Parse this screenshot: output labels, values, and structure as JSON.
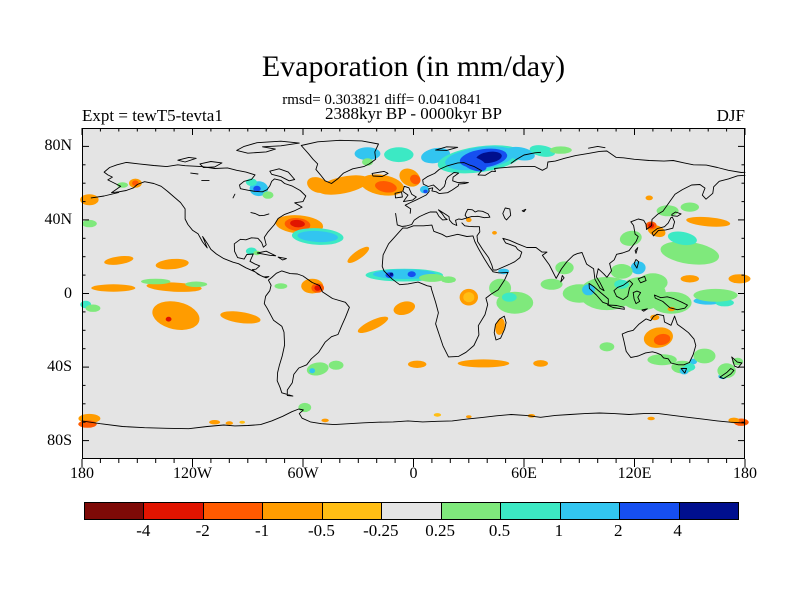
{
  "header": {
    "title": "Evaporation (in mm/day)",
    "stats_line": "rmsd= 0.303821 diff= 0.0410841",
    "period_line": "2388kyr BP - 0000kyr BP",
    "experiment_label": "Expt = tewT5-tevta1",
    "season_label": "DJF"
  },
  "chart_data": {
    "type": "heatmap",
    "subtype": "filled-contour anomaly map on equirectangular world projection",
    "title": "Evaporation (in mm/day)",
    "units": "mm/day",
    "stats": {
      "rmsd": 0.303821,
      "diff": 0.0410841
    },
    "period": "2388kyr BP - 0000kyr BP",
    "experiment": "tewT5-tevta1",
    "season": "DJF",
    "map_background": "#e4e4e4",
    "frame_color": "#000000",
    "lon_axis": {
      "range": [
        -180,
        180
      ],
      "minor_tick_deg": 10,
      "ticks": [
        {
          "label": "180",
          "lon": -180
        },
        {
          "label": "120W",
          "lon": -120
        },
        {
          "label": "60W",
          "lon": -60
        },
        {
          "label": "0",
          "lon": 0
        },
        {
          "label": "60E",
          "lon": 60
        },
        {
          "label": "120E",
          "lon": 120
        },
        {
          "label": "180",
          "lon": 180
        }
      ]
    },
    "lat_axis": {
      "range": [
        -90,
        90
      ],
      "minor_tick_deg": 10,
      "ticks": [
        {
          "label": "80N",
          "lat": 80
        },
        {
          "label": "40N",
          "lat": 40
        },
        {
          "label": "0",
          "lat": 0
        },
        {
          "label": "40S",
          "lat": -40
        },
        {
          "label": "80S",
          "lat": -80
        }
      ]
    },
    "colorbar": {
      "levels": [
        -4,
        -2,
        -1,
        -0.5,
        -0.25,
        0.25,
        0.5,
        1,
        2,
        4
      ],
      "colors": [
        "#7e0a07",
        "#e11400",
        "#ff5a00",
        "#ff9c00",
        "#ffbe14",
        "#e4e4e4",
        "#7fe97c",
        "#3ce9c4",
        "#32c5f0",
        "#164ff0",
        "#000f8e"
      ]
    },
    "anomaly_region_format": "[lon_center, lat_center, rx_deg, ry_deg, rotation_deg, colorbar_color_index]",
    "anomaly_regions": [
      [
        -38,
        59,
        14,
        4.5,
        -12,
        3
      ],
      [
        -52,
        59,
        6,
        4,
        20,
        3
      ],
      [
        -17,
        59,
        12,
        5.5,
        10,
        3
      ],
      [
        -15,
        58,
        6,
        3,
        10,
        2
      ],
      [
        -2,
        63,
        6,
        4.5,
        30,
        3
      ],
      [
        1,
        62,
        3,
        2.5,
        30,
        2
      ],
      [
        -25,
        76,
        7,
        3.5,
        0,
        8
      ],
      [
        -8,
        75.5,
        8,
        4,
        0,
        7
      ],
      [
        12,
        75,
        8,
        4,
        -10,
        8
      ],
      [
        36,
        73,
        23,
        7,
        -8,
        7
      ],
      [
        36,
        73.5,
        19,
        6,
        -8,
        8
      ],
      [
        38,
        73.5,
        13,
        5,
        -8,
        9
      ],
      [
        41,
        74,
        7,
        3,
        -8,
        10
      ],
      [
        33,
        70.5,
        7,
        3.5,
        20,
        9
      ],
      [
        58,
        76,
        8,
        3.5,
        10,
        8
      ],
      [
        70,
        77.5,
        7,
        3,
        10,
        7
      ],
      [
        80,
        78,
        6,
        2,
        0,
        6
      ],
      [
        6,
        56.5,
        2.5,
        2,
        0,
        8
      ],
      [
        6.5,
        55.5,
        1.2,
        1,
        0,
        9
      ],
      [
        -25,
        71.5,
        3,
        2,
        0,
        6
      ],
      [
        -84,
        57,
        5,
        4,
        0,
        8
      ],
      [
        -85,
        57,
        2,
        1.6,
        0,
        9
      ],
      [
        -88,
        60.5,
        3,
        2,
        0,
        7
      ],
      [
        -79,
        53.5,
        3,
        2,
        0,
        6
      ],
      [
        -62,
        37.5,
        13,
        5,
        5,
        3
      ],
      [
        -63,
        37.5,
        7,
        3.5,
        5,
        2
      ],
      [
        -63,
        38,
        4,
        2,
        5,
        1
      ],
      [
        -52,
        31,
        14,
        4.5,
        3,
        7
      ],
      [
        -52,
        31,
        11,
        3,
        3,
        8
      ],
      [
        -151,
        60,
        3.5,
        2.5,
        0,
        3
      ],
      [
        -151,
        60,
        1.8,
        1.5,
        0,
        2
      ],
      [
        -158,
        59,
        3,
        1.5,
        0,
        6
      ],
      [
        -176,
        51,
        5,
        3,
        0,
        3
      ],
      [
        -88,
        23,
        3,
        2,
        0,
        7
      ],
      [
        -85,
        22,
        2,
        1.2,
        0,
        6
      ],
      [
        -160,
        18,
        8,
        2.2,
        -8,
        3
      ],
      [
        -131,
        16,
        9,
        2.8,
        -5,
        3
      ],
      [
        -176,
        38,
        4,
        2,
        0,
        6
      ],
      [
        -178,
        -6,
        3,
        2,
        0,
        7
      ],
      [
        -174,
        -8,
        4,
        2,
        0,
        6
      ],
      [
        -163,
        3,
        12,
        2,
        0,
        3
      ],
      [
        -130,
        3.5,
        15,
        2.5,
        3,
        3
      ],
      [
        -140,
        6.5,
        8,
        1.5,
        0,
        6
      ],
      [
        -118,
        5,
        6,
        1.5,
        0,
        6
      ],
      [
        -129,
        -12,
        13,
        7.5,
        12,
        3
      ],
      [
        -133,
        -14,
        1.6,
        1.3,
        0,
        1
      ],
      [
        -94,
        -13,
        11,
        3,
        8,
        3
      ],
      [
        -72,
        4,
        3.5,
        1.5,
        0,
        6
      ],
      [
        -55,
        4,
        6,
        4,
        0,
        3
      ],
      [
        -52,
        3,
        3.4,
        2.6,
        0,
        2
      ],
      [
        -52,
        3,
        1.8,
        1.5,
        0,
        1
      ],
      [
        -52,
        -41,
        6,
        3.5,
        -10,
        6
      ],
      [
        -55,
        -42,
        1.6,
        1.4,
        0,
        8
      ],
      [
        -42,
        -39,
        4,
        2.5,
        0,
        6
      ],
      [
        -59,
        -62,
        3.5,
        2.5,
        0,
        6
      ],
      [
        -30,
        21,
        7,
        2.2,
        -35,
        3
      ],
      [
        -22,
        -17,
        9,
        2.5,
        -25,
        3
      ],
      [
        -5,
        -8,
        6,
        3.5,
        -15,
        3
      ],
      [
        -5,
        10,
        21,
        3.5,
        0,
        7
      ],
      [
        -5,
        10.5,
        17,
        2.6,
        0,
        8
      ],
      [
        -13,
        10,
        2.2,
        1.6,
        0,
        9
      ],
      [
        -1,
        10.5,
        2.2,
        1.6,
        0,
        9
      ],
      [
        -12,
        10.5,
        1,
        0.9,
        0,
        10
      ],
      [
        10,
        8.5,
        7,
        2.2,
        0,
        6
      ],
      [
        19,
        7.5,
        4,
        1.8,
        0,
        6
      ],
      [
        30,
        -2,
        5,
        4.5,
        0,
        3
      ],
      [
        30,
        -2,
        3,
        2.8,
        0,
        4
      ],
      [
        47,
        -18,
        2.5,
        4.5,
        10,
        3
      ],
      [
        2,
        -38.5,
        5,
        2,
        0,
        3
      ],
      [
        38,
        -38,
        14,
        2.2,
        0,
        3
      ],
      [
        69,
        -38,
        4,
        1.8,
        0,
        3
      ],
      [
        47,
        3,
        6,
        5,
        0,
        6
      ],
      [
        55,
        -5,
        10,
        6,
        0,
        6
      ],
      [
        52,
        -2,
        4,
        2.5,
        0,
        7
      ],
      [
        49,
        12,
        3,
        1.5,
        0,
        8
      ],
      [
        75,
        5,
        6,
        3,
        0,
        6
      ],
      [
        82,
        14,
        5,
        3.5,
        0,
        6
      ],
      [
        90,
        0,
        9,
        5,
        0,
        6
      ],
      [
        105,
        0,
        15,
        9,
        0,
        6
      ],
      [
        124,
        0,
        13,
        9,
        0,
        6
      ],
      [
        140,
        -5,
        11,
        6,
        0,
        6
      ],
      [
        95,
        2,
        3.5,
        3,
        0,
        8
      ],
      [
        122,
        14,
        4,
        3.5,
        0,
        8
      ],
      [
        113,
        5,
        4,
        2.5,
        0,
        7
      ],
      [
        160,
        -4,
        8,
        2,
        0,
        8
      ],
      [
        169,
        -5,
        5,
        2,
        0,
        7
      ],
      [
        164,
        -1,
        12,
        3.5,
        0,
        6
      ],
      [
        168,
        -45,
        2.5,
        1.5,
        0,
        8
      ],
      [
        113,
        12,
        6,
        4,
        0,
        6
      ],
      [
        130,
        6,
        8,
        5,
        0,
        6
      ],
      [
        105,
        -29,
        4,
        2.5,
        0,
        6
      ],
      [
        150,
        8,
        5,
        2,
        0,
        3
      ],
      [
        177,
        8,
        6,
        2.5,
        0,
        3
      ],
      [
        140,
        -8.5,
        2,
        1.2,
        0,
        3
      ],
      [
        131,
        -13,
        2.5,
        1.5,
        0,
        3
      ],
      [
        118,
        30,
        6,
        4,
        -10,
        6
      ],
      [
        150,
        22,
        16,
        6,
        8,
        6
      ],
      [
        146,
        30,
        8,
        3.5,
        10,
        7
      ],
      [
        138,
        45,
        6,
        3,
        0,
        6
      ],
      [
        150,
        47,
        5,
        2.5,
        0,
        6
      ],
      [
        132,
        34,
        5,
        3,
        20,
        3
      ],
      [
        129,
        37,
        3,
        2.2,
        0,
        2
      ],
      [
        129,
        37,
        1.6,
        1.3,
        0,
        1
      ],
      [
        160,
        39,
        12,
        2.5,
        5,
        3
      ],
      [
        128,
        52,
        2,
        1.3,
        0,
        3
      ],
      [
        133,
        -24,
        8,
        5.5,
        -10,
        3
      ],
      [
        135,
        -25,
        4.5,
        3,
        -10,
        2
      ],
      [
        135,
        -36,
        8,
        3,
        0,
        6
      ],
      [
        146,
        -40,
        6,
        3.5,
        0,
        6
      ],
      [
        147,
        -42,
        2.5,
        2,
        0,
        8
      ],
      [
        152,
        -37,
        2,
        1.6,
        0,
        8
      ],
      [
        150,
        -40,
        3,
        2,
        0,
        7
      ],
      [
        158,
        -34,
        6,
        4,
        0,
        6
      ],
      [
        170,
        -42,
        5,
        4,
        0,
        6
      ],
      [
        176,
        -37,
        3,
        2,
        0,
        6
      ],
      [
        -176,
        -68,
        6,
        2.5,
        0,
        3
      ],
      [
        -177,
        -71,
        5,
        2,
        0,
        2
      ],
      [
        -108,
        -70,
        3,
        1.2,
        0,
        3
      ],
      [
        -100,
        -70.5,
        2,
        1,
        0,
        3
      ],
      [
        -93,
        -70,
        1.5,
        0.8,
        0,
        4
      ],
      [
        13,
        -66,
        2,
        1,
        0,
        4
      ],
      [
        30,
        -67,
        1.5,
        0.8,
        0,
        3
      ],
      [
        64,
        -66.5,
        2,
        1,
        0,
        3
      ],
      [
        129,
        -68,
        2,
        1,
        0,
        3
      ],
      [
        178,
        -70,
        4,
        2,
        0,
        2
      ],
      [
        174,
        -69,
        3,
        1.5,
        0,
        3
      ],
      [
        -48,
        -69,
        2,
        1,
        0,
        3
      ],
      [
        30,
        40,
        1.5,
        1.2,
        0,
        3
      ],
      [
        44,
        33,
        1.3,
        1,
        0,
        3
      ]
    ]
  }
}
